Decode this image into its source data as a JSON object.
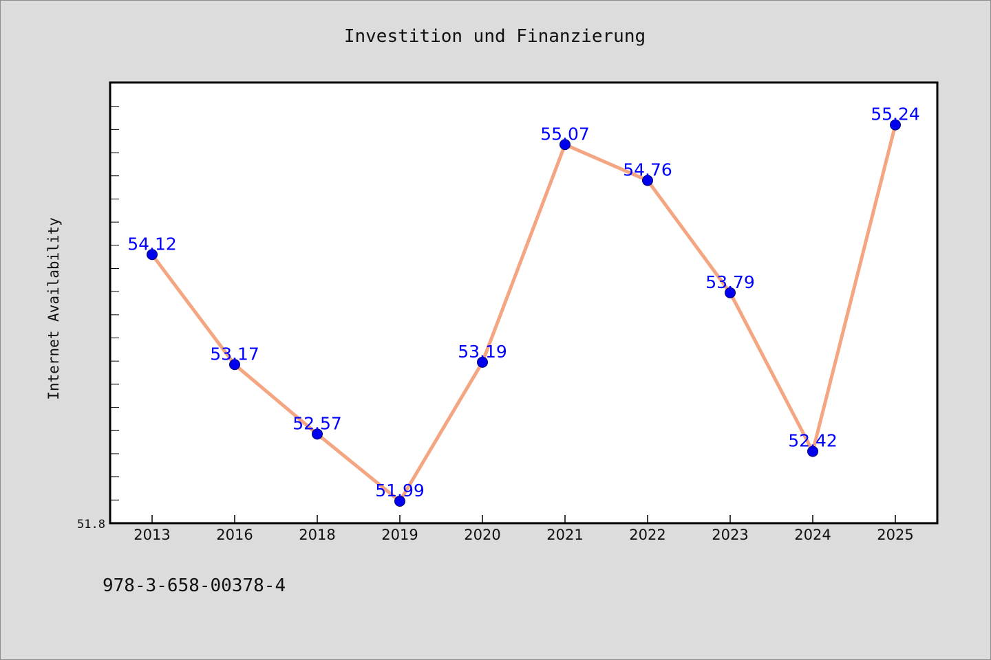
{
  "chart_data": {
    "type": "line",
    "title": "Investition und Finanzierung",
    "xlabel": "",
    "ylabel": "Internet Availability",
    "categories": [
      "2013",
      "2016",
      "2018",
      "2019",
      "2020",
      "2021",
      "2022",
      "2023",
      "2024",
      "2025"
    ],
    "series": [
      {
        "values": [
          54.12,
          53.17,
          52.57,
          51.99,
          53.19,
          55.07,
          54.76,
          53.79,
          52.42,
          55.24
        ],
        "labels": [
          "54.12",
          "53.17",
          "52.57",
          "51.99",
          "53.19",
          "55.07",
          "54.76",
          "53.79",
          "52.42",
          "55.24"
        ]
      }
    ],
    "ylim": [
      51.8,
      55.6
    ],
    "y_tick_label": "51.8",
    "grid": false,
    "line_color": "#f4a582",
    "marker_color": "#0000ee",
    "label_color": "#0000ff"
  },
  "footer": {
    "isbn": "978-3-658-00378-4"
  }
}
